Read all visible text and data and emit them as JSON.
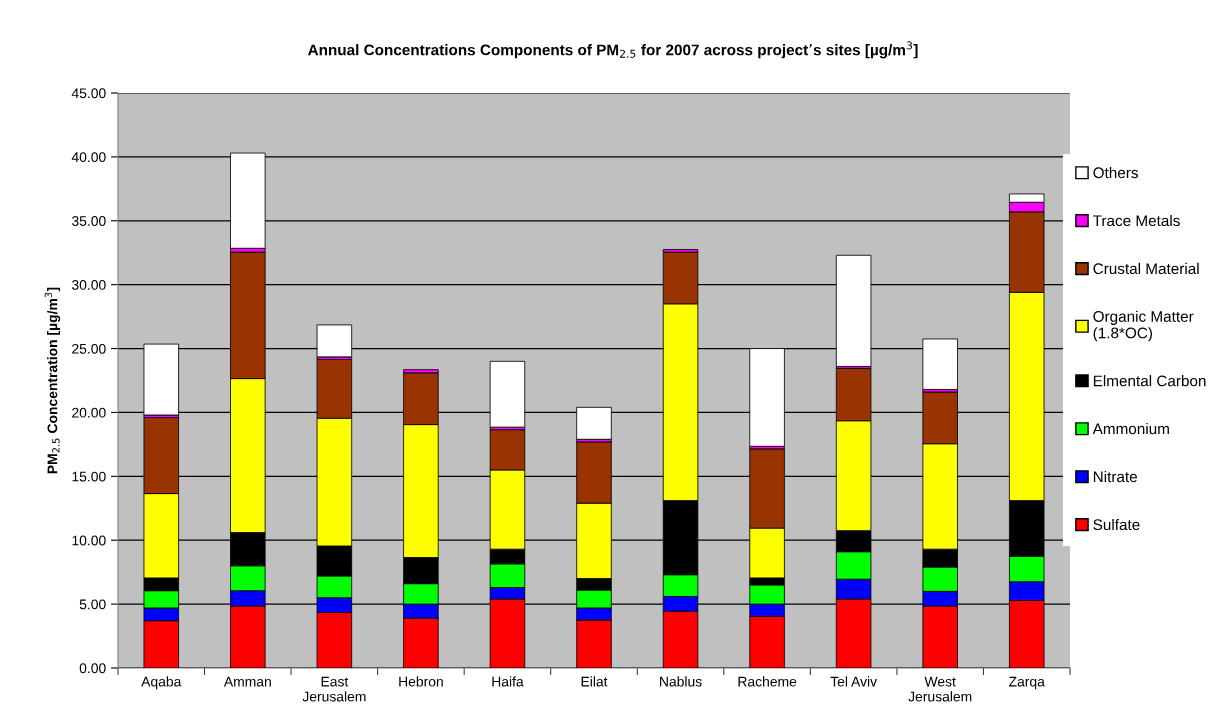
{
  "chart_data": {
    "type": "bar",
    "stacked": true,
    "title": "Annual Concentrations Components of PM$_{2.5}$ for 2007 across project’s sites [µg/m$^{3}$]",
    "ylabel": "PM$_{2.5}$ Concentration [µg/m$^{3}$]",
    "categories": [
      "Aqaba",
      "Amman",
      "East\nJerusalem",
      "Hebron",
      "Haifa",
      "Eilat",
      "Nablus",
      "Racheme",
      "Tel Aviv",
      "West\nJerusalem",
      "Zarqa"
    ],
    "series": [
      {
        "name": "Sulfate",
        "color": "#ff0000",
        "values": [
          3.7,
          4.85,
          4.35,
          3.9,
          5.4,
          3.75,
          4.45,
          4.05,
          5.4,
          4.85,
          5.3
        ]
      },
      {
        "name": "Nitrate",
        "color": "#0000ff",
        "values": [
          1.0,
          1.2,
          1.15,
          1.1,
          0.9,
          0.95,
          1.15,
          0.95,
          1.55,
          1.15,
          1.45
        ]
      },
      {
        "name": "Ammonium",
        "color": "#00ff00",
        "values": [
          1.35,
          1.95,
          1.7,
          1.6,
          1.85,
          1.4,
          1.7,
          1.5,
          2.15,
          1.9,
          2.0
        ]
      },
      {
        "name": "Elmental Carbon",
        "color": "#000000",
        "values": [
          1.0,
          2.6,
          2.35,
          2.05,
          1.15,
          0.9,
          5.8,
          0.55,
          1.65,
          1.4,
          4.35
        ]
      },
      {
        "name": "Organic Matter\n(1.8*OC)",
        "color": "#ffff00",
        "values": [
          6.6,
          12.05,
          10.0,
          10.4,
          6.2,
          5.9,
          15.4,
          3.9,
          8.6,
          8.25,
          16.3
        ]
      },
      {
        "name": "Crustal Material",
        "color": "#993300",
        "values": [
          5.95,
          9.9,
          4.6,
          4.05,
          3.15,
          4.8,
          4.05,
          6.2,
          4.1,
          4.05,
          6.3
        ]
      },
      {
        "name": "Trace Metals",
        "color": "#ff00ff",
        "values": [
          0.2,
          0.3,
          0.2,
          0.25,
          0.2,
          0.2,
          0.2,
          0.2,
          0.15,
          0.2,
          0.75
        ]
      },
      {
        "name": "Others",
        "color": "#ffffff",
        "values": [
          5.55,
          7.45,
          2.5,
          null,
          5.15,
          2.5,
          null,
          7.65,
          8.7,
          3.95,
          0.65
        ]
      }
    ],
    "ylim": [
      0,
      45
    ],
    "yticks": [
      {
        "value": 0,
        "label": "0.00"
      },
      {
        "value": 5,
        "label": "5.00"
      },
      {
        "value": 10,
        "label": "10.00"
      },
      {
        "value": 15,
        "label": "15.00"
      },
      {
        "value": 20,
        "label": "20.00"
      },
      {
        "value": 25,
        "label": "25.00"
      },
      {
        "value": 30,
        "label": "30.00"
      },
      {
        "value": 35,
        "label": "35.00"
      },
      {
        "value": 40,
        "label": "40.00"
      },
      {
        "value": 45,
        "label": "45.00"
      }
    ],
    "grid": "y",
    "legend": "right"
  }
}
